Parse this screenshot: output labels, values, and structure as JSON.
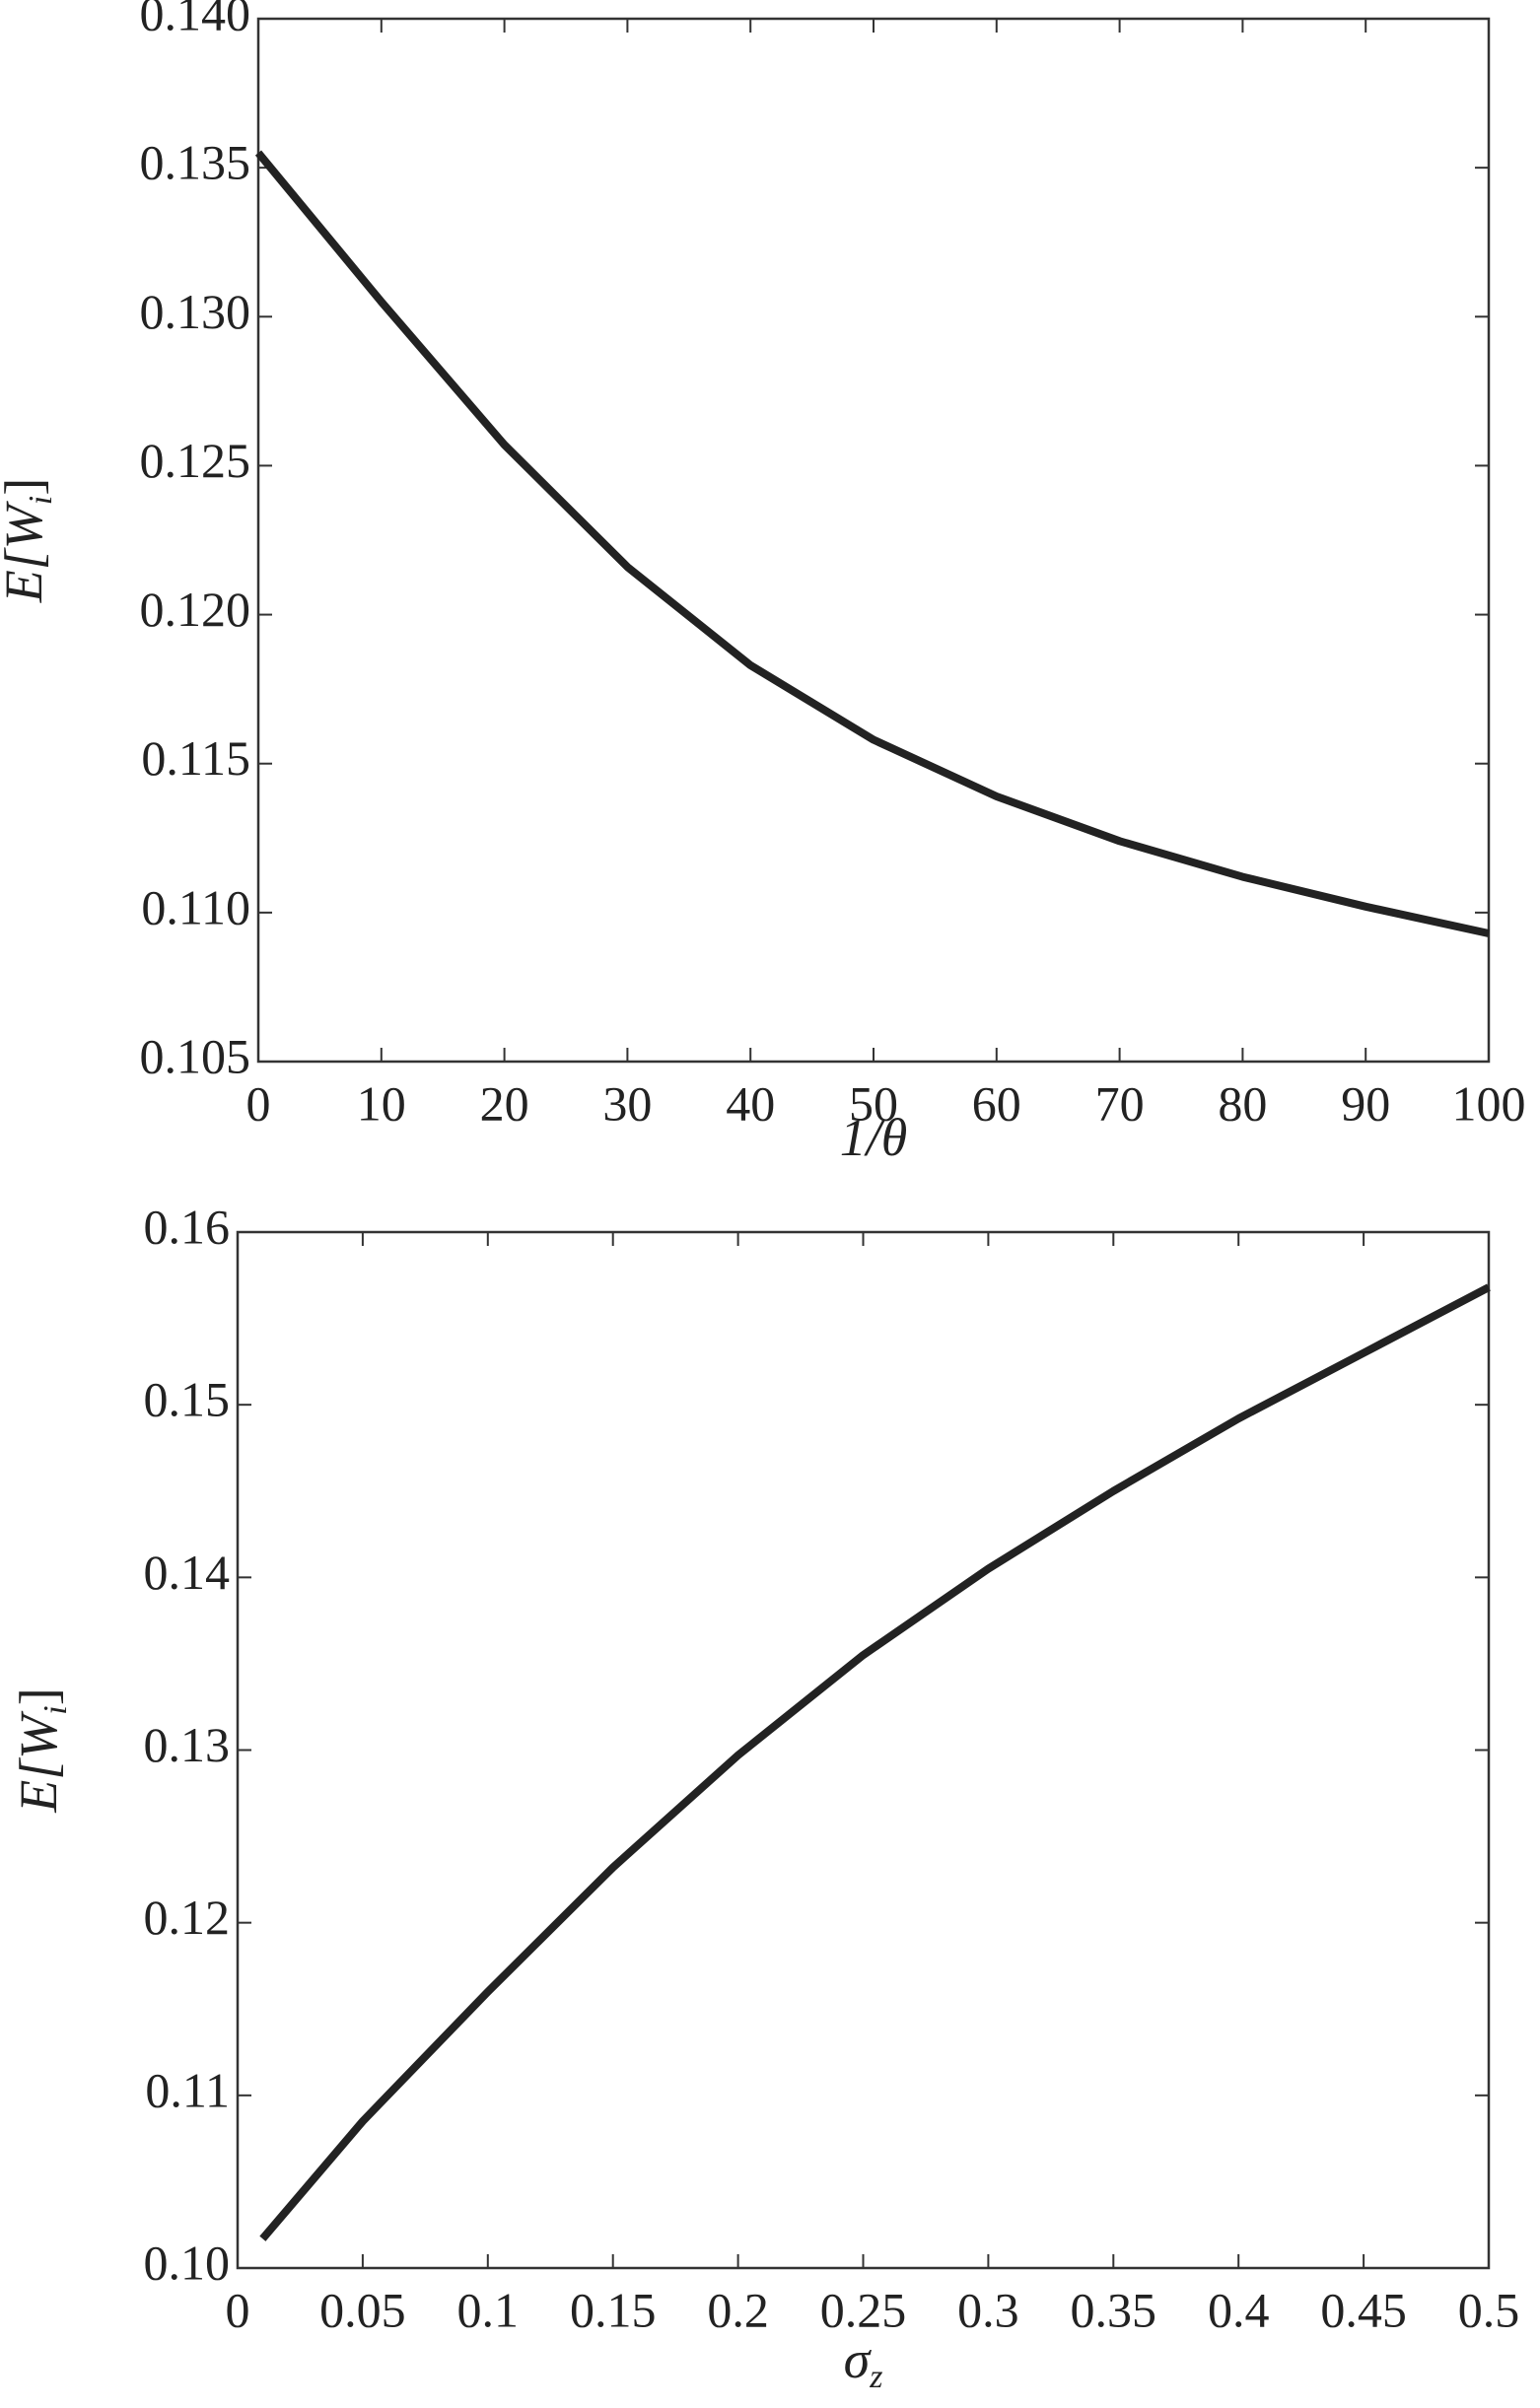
{
  "chart_data": [
    {
      "type": "line",
      "x": [
        0,
        10,
        20,
        30,
        40,
        50,
        60,
        70,
        80,
        90,
        100
      ],
      "series": [
        {
          "color": "#222222",
          "values": [
            0.1355,
            0.1305,
            0.1257,
            0.1216,
            0.1183,
            0.1158,
            0.1139,
            0.1124,
            0.1112,
            0.1102,
            0.1093
          ]
        }
      ],
      "xlabel": [
        "1/θ"
      ],
      "ylabel": [
        "E[W",
        "i",
        "]"
      ],
      "xlim": [
        0,
        100
      ],
      "xticks": [
        0,
        10,
        20,
        30,
        40,
        50,
        60,
        70,
        80,
        90,
        100
      ],
      "ylim": [
        0.105,
        0.14
      ],
      "yticks": [
        0.105,
        {
          "value": 0.11,
          "label": "0.110"
        },
        0.115,
        {
          "value": 0.12,
          "label": "0.120"
        },
        0.125,
        {
          "value": 0.13,
          "label": "0.130"
        },
        0.135,
        {
          "value": 0.14,
          "label": "0.140"
        }
      ]
    },
    {
      "type": "line",
      "x": [
        0.01,
        0.05,
        0.1,
        0.15,
        0.2,
        0.25,
        0.3,
        0.35,
        0.4,
        0.45,
        0.5
      ],
      "series": [
        {
          "color": "#222222",
          "values": [
            0.1017,
            0.1085,
            0.116,
            0.1232,
            0.1297,
            0.1355,
            0.1405,
            0.145,
            0.1492,
            0.153,
            0.1568
          ]
        }
      ],
      "xlabel": [
        "σ",
        "z"
      ],
      "ylabel": [
        "E[W",
        "i",
        "]"
      ],
      "xlim": [
        0,
        0.5
      ],
      "xticks": [
        0,
        0.05,
        0.1,
        0.15,
        0.2,
        0.25,
        0.3,
        0.35,
        0.4,
        0.45,
        0.5
      ],
      "ylim": [
        0.1,
        0.16
      ],
      "yticks": [
        {
          "value": 0.1,
          "label": "0.10"
        },
        0.11,
        0.12,
        0.13,
        0.14,
        0.15,
        0.16
      ]
    }
  ]
}
